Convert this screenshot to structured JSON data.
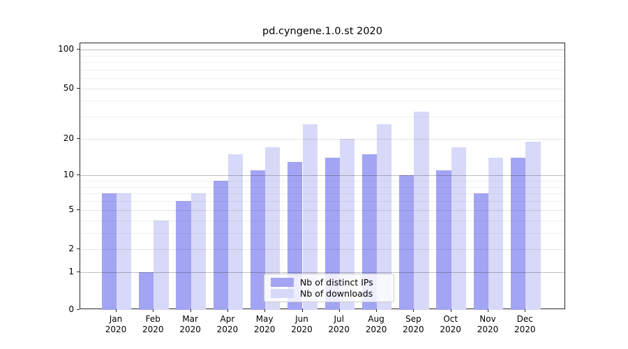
{
  "figure": {
    "title": "pd.cyngene.1.0.st 2020"
  },
  "chart_data": {
    "type": "bar",
    "title": "pd.cyngene.1.0.st 2020",
    "categories": [
      "Jan",
      "Feb",
      "Mar",
      "Apr",
      "May",
      "Jun",
      "Jul",
      "Aug",
      "Sep",
      "Oct",
      "Nov",
      "Dec"
    ],
    "year": "2020",
    "series": [
      {
        "name": "Nb of distinct IPs",
        "color": "#a4a4f4",
        "values": [
          7,
          1,
          6,
          9,
          11,
          13,
          14,
          15,
          10,
          11,
          7,
          14
        ]
      },
      {
        "name": "Nb of downloads",
        "color": "#d8d8f8",
        "values": [
          7,
          4,
          7,
          15,
          17,
          26,
          20,
          26,
          33,
          17,
          14,
          19
        ]
      }
    ],
    "yscale": "log1p",
    "ylim": [
      0,
      112
    ],
    "yticks": [
      0,
      1,
      2,
      5,
      10,
      20,
      50,
      100
    ],
    "ytick_major": [
      1,
      10,
      100
    ],
    "ytick_minor": [
      3,
      4,
      6,
      7,
      8,
      9,
      30,
      40,
      60,
      70,
      80,
      90
    ],
    "grid": true,
    "legend_position": "lower center",
    "colors": {
      "grid_major": "rgba(0,0,0,0.25)",
      "grid_minor_labeled": "rgba(0,0,0,0.10)",
      "grid_minor": "rgba(0,0,0,0.06)",
      "spine": "#262626"
    }
  }
}
